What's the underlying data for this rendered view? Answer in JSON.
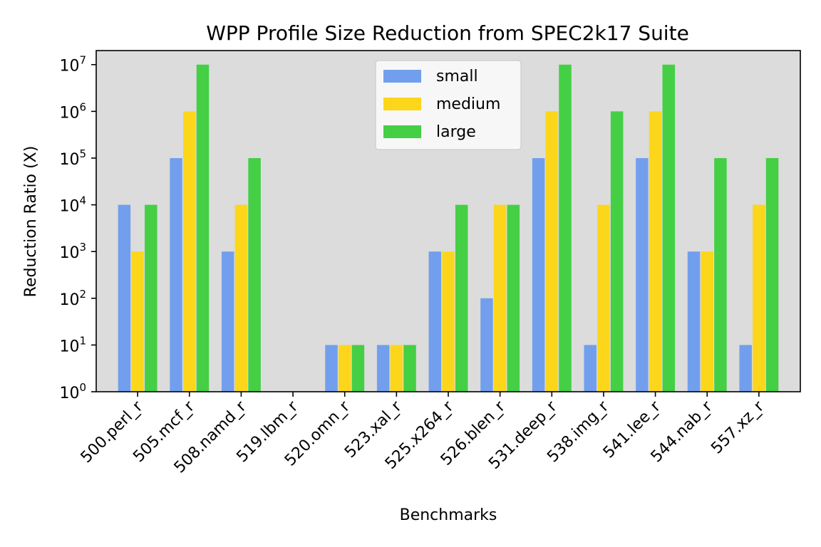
{
  "chart_data": {
    "type": "bar",
    "title": "WPP Profile Size Reduction from SPEC2k17 Suite",
    "xlabel": "Benchmarks",
    "ylabel": "Reduction Ratio (X)",
    "yscale": "log",
    "ylim": [
      1,
      20000000
    ],
    "yticks": [
      {
        "base": "10",
        "exp": "0",
        "value": 1
      },
      {
        "base": "10",
        "exp": "1",
        "value": 10
      },
      {
        "base": "10",
        "exp": "2",
        "value": 100
      },
      {
        "base": "10",
        "exp": "3",
        "value": 1000
      },
      {
        "base": "10",
        "exp": "4",
        "value": 10000
      },
      {
        "base": "10",
        "exp": "5",
        "value": 100000
      },
      {
        "base": "10",
        "exp": "6",
        "value": 1000000
      },
      {
        "base": "10",
        "exp": "7",
        "value": 10000000
      }
    ],
    "categories": [
      "500.perl_r",
      "505.mcf_r",
      "508.namd_r",
      "519.lbm_r",
      "520.omn_r",
      "523.xal_r",
      "525.x264_r",
      "526.blen_r",
      "531.deep_r",
      "538.img_r",
      "541.lee_r",
      "544.nab_r",
      "557.xz_r"
    ],
    "series": [
      {
        "name": "small",
        "color": "#729fed",
        "values": [
          10000,
          100000,
          1000,
          1,
          10,
          10,
          1000,
          100,
          100000,
          10,
          100000,
          1000,
          10
        ]
      },
      {
        "name": "medium",
        "color": "#fcd61a",
        "values": [
          1000,
          1000000,
          10000,
          1,
          10,
          10,
          1000,
          10000,
          1000000,
          10000,
          1000000,
          1000,
          10000
        ]
      },
      {
        "name": "large",
        "color": "#44cf44",
        "values": [
          10000,
          10000000,
          100000,
          1,
          10,
          10,
          10000,
          10000,
          10000000,
          1000000,
          10000000,
          100000,
          100000
        ]
      }
    ],
    "legend_position": "top-center",
    "plot_background": "#dcdcdc"
  }
}
